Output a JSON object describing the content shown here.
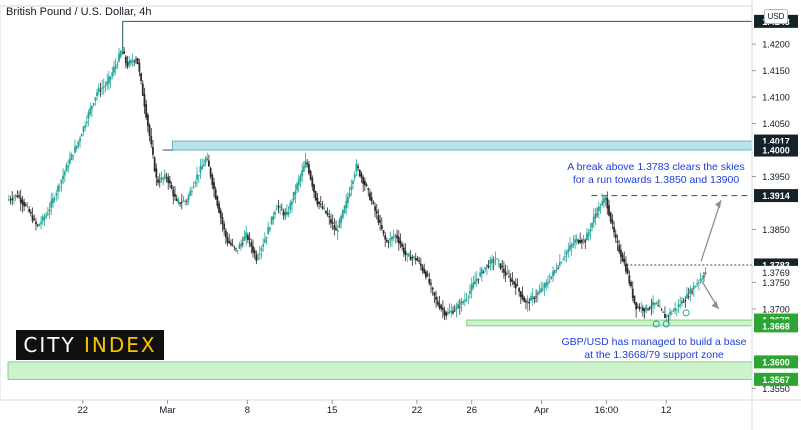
{
  "header": {
    "title": "British Pound / U.S. Dollar, 4h",
    "currency": "USD"
  },
  "annotations": {
    "breakout": "A break above 1.3783 clears the skies for a run towards 1.3850 and 13900",
    "support": "GBP/USD has managed to build a base at the 1.3668/79 support zone"
  },
  "logo": {
    "part1": "CITY",
    "part2": "INDEX"
  },
  "colors": {
    "up": "#26a69a",
    "down": "#2b2b2b",
    "line": "#1f5a5e",
    "zone_teal": "#b7e4e8",
    "zone_green": "#ccf3cc",
    "badge_dark": "#14232a",
    "badge_green": "#2ca532",
    "annotation": "#1f3ed6",
    "arrow": "#8a8f98"
  },
  "chart_data": {
    "type": "line",
    "title": "British Pound / U.S. Dollar, 4h",
    "ylim": [
      1.3528,
      1.4272
    ],
    "y_ticks": [
      "1.4200",
      "1.4150",
      "1.4100",
      "1.4050",
      "1.3950",
      "1.3850",
      "1.3750",
      "1.3700",
      "1.3550"
    ],
    "x_ticks": [
      "22",
      "Mar",
      "8",
      "15",
      "22",
      "26",
      "Apr",
      "16:00",
      "12"
    ],
    "x_tick_index": [
      15,
      32,
      48,
      65,
      82,
      93,
      107,
      120,
      132
    ],
    "x_range": [
      0,
      146
    ],
    "price_labels": [
      {
        "value": 1.4243,
        "label": "1.4243",
        "style": "dark"
      },
      {
        "value": 1.4017,
        "label": "1.4017",
        "style": "dark"
      },
      {
        "value": 1.4,
        "label": "1.4000",
        "style": "dark"
      },
      {
        "value": 1.3914,
        "label": "1.3914",
        "style": "dark"
      },
      {
        "value": 1.3783,
        "label": "1.3783",
        "style": "dark"
      },
      {
        "value": 1.3769,
        "label": "1.3769",
        "style": "plain"
      },
      {
        "value": 1.3679,
        "label": "1.3679",
        "style": "green"
      },
      {
        "value": 1.3668,
        "label": "1.3668",
        "style": "green"
      },
      {
        "value": 1.36,
        "label": "1.3600",
        "style": "green"
      },
      {
        "value": 1.3567,
        "label": "1.3567",
        "style": "green"
      }
    ],
    "zones": [
      {
        "from": 1.4,
        "to": 1.4017,
        "from_index": 33,
        "color": "teal"
      },
      {
        "from": 1.3668,
        "to": 1.3679,
        "from_index": 92,
        "color": "green"
      },
      {
        "from": 1.3567,
        "to": 1.36,
        "from_index": 0,
        "color": "green"
      }
    ],
    "levels": [
      {
        "value": 1.4243,
        "from_index": 23,
        "style": "solid"
      },
      {
        "value": 1.3914,
        "from_index": 117,
        "style": "dashed"
      },
      {
        "value": 1.3783,
        "from_index": 124,
        "style": "dotted"
      }
    ],
    "series": [
      {
        "x": [
          0,
          2,
          4,
          6,
          8,
          10,
          12,
          14,
          16,
          18,
          20,
          22,
          23,
          24,
          26,
          28,
          30,
          32,
          34,
          36,
          38,
          40,
          42,
          44,
          46,
          48,
          50,
          52,
          54,
          56,
          58,
          60,
          62,
          64,
          66,
          68,
          70,
          72,
          74,
          76,
          78,
          80,
          82,
          84,
          86,
          88,
          90,
          92,
          94,
          96,
          98,
          100,
          102,
          104,
          106,
          108,
          110,
          112,
          114,
          116,
          118,
          120,
          122,
          124,
          126,
          128,
          130,
          132,
          134,
          136,
          138,
          140
        ],
        "y": [
          1.3905,
          1.3915,
          1.389,
          1.3855,
          1.388,
          1.3925,
          1.397,
          1.401,
          1.406,
          1.411,
          1.4125,
          1.4165,
          1.419,
          1.416,
          1.4175,
          1.406,
          1.394,
          1.395,
          1.39,
          1.3905,
          1.395,
          1.3985,
          1.3905,
          1.383,
          1.381,
          1.384,
          1.3795,
          1.384,
          1.3895,
          1.3875,
          1.393,
          1.398,
          1.3905,
          1.388,
          1.3845,
          1.39,
          1.397,
          1.393,
          1.388,
          1.3825,
          1.384,
          1.38,
          1.3795,
          1.3765,
          1.3715,
          1.369,
          1.37,
          1.372,
          1.3755,
          1.378,
          1.3795,
          1.3765,
          1.3745,
          1.371,
          1.3725,
          1.3745,
          1.3775,
          1.3805,
          1.383,
          1.383,
          1.388,
          1.391,
          1.383,
          1.378,
          1.3705,
          1.37,
          1.371,
          1.3685,
          1.37,
          1.372,
          1.3745,
          1.3769
        ]
      }
    ]
  }
}
